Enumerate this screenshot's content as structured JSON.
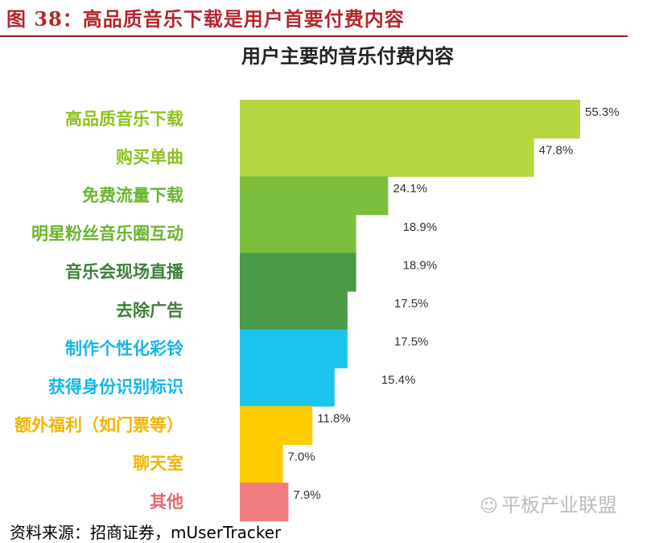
{
  "figure": {
    "title": "图 38：高品质音乐下载是用户首要付费内容",
    "source": "资料来源：招商证券，mUserTracker",
    "watermark": "平板产业联盟",
    "watermark_icon": "wechat-icon"
  },
  "colors": {
    "title_red": "#b3282d",
    "lime": "#b5d640",
    "green": "#7cbf3e",
    "dark_green": "#4a9a48",
    "cyan": "#1bc4ef",
    "yellow": "#ffcc00",
    "pink": "#ef7c80"
  },
  "chart_data": {
    "type": "bar",
    "orientation": "horizontal",
    "title": "用户主要的音乐付费内容",
    "categories": [
      "高品质音乐下载",
      "购买单曲",
      "免费流量下载",
      "明星粉丝音乐圈互动",
      "音乐会现场直播",
      "去除广告",
      "制作个性化彩铃",
      "获得身份识别标识",
      "额外福利（如门票等）",
      "聊天室",
      "其他"
    ],
    "values": [
      55.3,
      47.8,
      24.1,
      18.9,
      18.9,
      17.5,
      17.5,
      15.4,
      11.8,
      7.0,
      7.9
    ],
    "value_labels": [
      "55.3%",
      "47.8%",
      "24.1%",
      "18.9%",
      "18.9%",
      "17.5%",
      "17.5%",
      "15.4%",
      "11.8%",
      "7.0%",
      "7.9%"
    ],
    "colors": [
      "#b5d640",
      "#b5d640",
      "#7cbf3e",
      "#7cbf3e",
      "#4a9a48",
      "#4a9a48",
      "#1bc4ef",
      "#1bc4ef",
      "#ffcc00",
      "#ffcc00",
      "#ef7c80"
    ],
    "label_colors": [
      "#8dc21f",
      "#8dc21f",
      "#6ab52e",
      "#6ab52e",
      "#3f7f3a",
      "#3f7f3a",
      "#15b6e6",
      "#15b6e6",
      "#f2b400",
      "#f2b400",
      "#e8686d"
    ],
    "style": "stepped waterfall (stacked descending bars)",
    "xlim": [
      0,
      60
    ]
  }
}
